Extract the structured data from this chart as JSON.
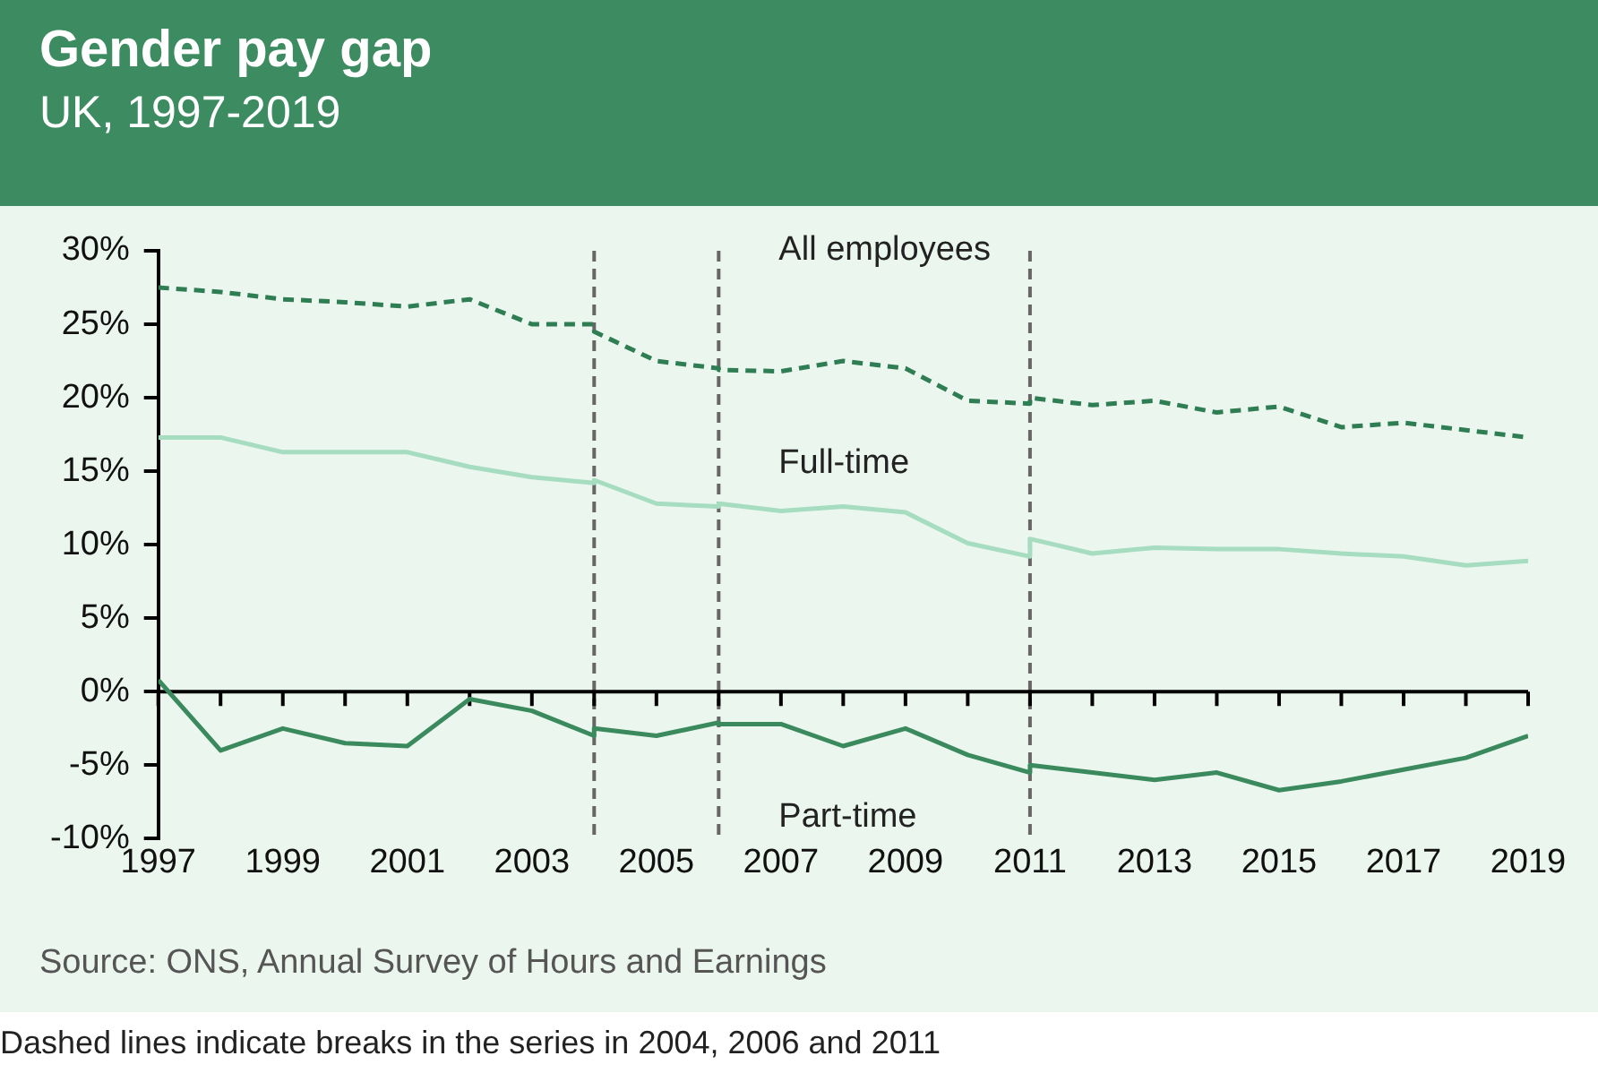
{
  "chart_data": {
    "type": "line",
    "title": "Gender pay gap",
    "subtitle": "UK, 1997-2019",
    "series": [
      {
        "name": "All employees",
        "color": "#2f7d52",
        "line_style": "dashed",
        "x": [
          1997,
          1998,
          1999,
          2000,
          2001,
          2002,
          2003,
          2004,
          2004,
          2005,
          2006,
          2006,
          2007,
          2008,
          2009,
          2010,
          2011,
          2011,
          2012,
          2013,
          2014,
          2015,
          2016,
          2017,
          2018,
          2019
        ],
        "values": [
          27.5,
          27.2,
          26.7,
          26.5,
          26.2,
          26.7,
          25.0,
          25.0,
          24.5,
          22.5,
          22.0,
          21.9,
          21.8,
          22.5,
          22.0,
          19.8,
          19.6,
          20.0,
          19.5,
          19.8,
          19.0,
          19.4,
          18.0,
          18.3,
          17.8,
          17.3
        ]
      },
      {
        "name": "Full-time",
        "color": "#a6dcbf",
        "line_style": "solid",
        "x": [
          1997,
          1998,
          1999,
          2000,
          2001,
          2002,
          2003,
          2004,
          2004,
          2005,
          2006,
          2006,
          2007,
          2008,
          2009,
          2010,
          2011,
          2011,
          2012,
          2013,
          2014,
          2015,
          2016,
          2017,
          2018,
          2019
        ],
        "values": [
          17.3,
          17.3,
          16.3,
          16.3,
          16.3,
          15.3,
          14.6,
          14.2,
          14.4,
          12.8,
          12.6,
          12.8,
          12.3,
          12.6,
          12.2,
          10.1,
          9.2,
          10.4,
          9.4,
          9.8,
          9.7,
          9.7,
          9.4,
          9.2,
          8.6,
          8.9
        ]
      },
      {
        "name": "Part-time",
        "color": "#3a8a5e",
        "line_style": "solid",
        "x": [
          1997,
          1998,
          1999,
          2000,
          2001,
          2002,
          2003,
          2004,
          2004,
          2005,
          2006,
          2006,
          2007,
          2008,
          2009,
          2010,
          2011,
          2011,
          2012,
          2013,
          2014,
          2015,
          2016,
          2017,
          2018,
          2019
        ],
        "values": [
          0.8,
          -4.0,
          -2.5,
          -3.5,
          -3.7,
          -0.5,
          -1.3,
          -3.0,
          -2.5,
          -3.0,
          -2.1,
          -2.2,
          -2.2,
          -3.7,
          -2.5,
          -4.3,
          -5.5,
          -5.0,
          -5.5,
          -6.0,
          -5.5,
          -6.7,
          -6.1,
          -5.3,
          -4.5,
          -3.0
        ]
      }
    ],
    "xlim": [
      1997,
      2019
    ],
    "xticks": [
      1997,
      {
        "value": 1998,
        "label": null
      },
      1999,
      {
        "value": 2000,
        "label": null
      },
      2001,
      {
        "value": 2002,
        "label": null
      },
      2003,
      {
        "value": 2004,
        "label": null
      },
      2005,
      {
        "value": 2006,
        "label": null
      },
      2007,
      {
        "value": 2008,
        "label": null
      },
      2009,
      {
        "value": 2010,
        "label": null
      },
      2011,
      {
        "value": 2012,
        "label": null
      },
      2013,
      {
        "value": 2014,
        "label": null
      },
      2015,
      {
        "value": 2016,
        "label": null
      },
      2017,
      {
        "value": 2018,
        "label": null
      },
      2019
    ],
    "ylim": [
      -10,
      30
    ],
    "yticks": [
      {
        "value": -10,
        "label": "-10%"
      },
      {
        "value": -5,
        "label": "-5%"
      },
      {
        "value": 0,
        "label": "0%"
      },
      {
        "value": 5,
        "label": "5%"
      },
      {
        "value": 10,
        "label": "10%"
      },
      {
        "value": 15,
        "label": "15%"
      },
      {
        "value": 20,
        "label": "20%"
      },
      {
        "value": 25,
        "label": "25%"
      },
      {
        "value": 30,
        "label": "30%"
      }
    ],
    "ref_lines": [
      {
        "axis": "x",
        "value": 2004,
        "color": "#666666",
        "line_style": "dashed"
      },
      {
        "axis": "x",
        "value": 2006,
        "color": "#666666",
        "line_style": "dashed"
      },
      {
        "axis": "x",
        "value": 2011,
        "color": "#666666",
        "line_style": "dashed"
      }
    ],
    "grid": false,
    "legend": false,
    "marker": "none",
    "annotations": [
      "Source: ONS, Annual Survey of Hours and Earnings",
      "Dashed lines indicate breaks in the series in 2004, 2006 and 2011"
    ]
  }
}
